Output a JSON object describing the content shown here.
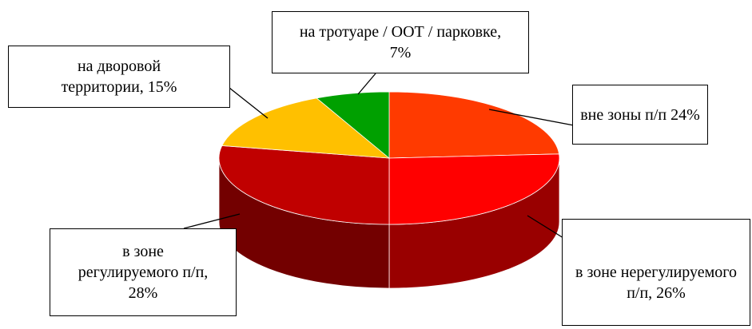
{
  "chart_data": {
    "type": "pie3d",
    "categories": [
      "вне зоны п/п",
      "в зоне нерегулируемого п/п",
      "в зоне регулируемого п/п",
      "на дворовой территории",
      "на тротуаре / ООТ / парковке"
    ],
    "values": [
      24,
      26,
      28,
      15,
      7
    ],
    "value_labels": [
      "вне зоны п/п 24%",
      "в зоне нерегулируемого п/п, 26%",
      "в зоне регулируемого п/п,  28%",
      "на дворовой территории, 15%",
      "на тротуаре / ООТ / парковке, 7%"
    ],
    "colors": [
      "#ff3a00",
      "#ff0000",
      "#c00000",
      "#ffc000",
      "#00a000"
    ]
  }
}
